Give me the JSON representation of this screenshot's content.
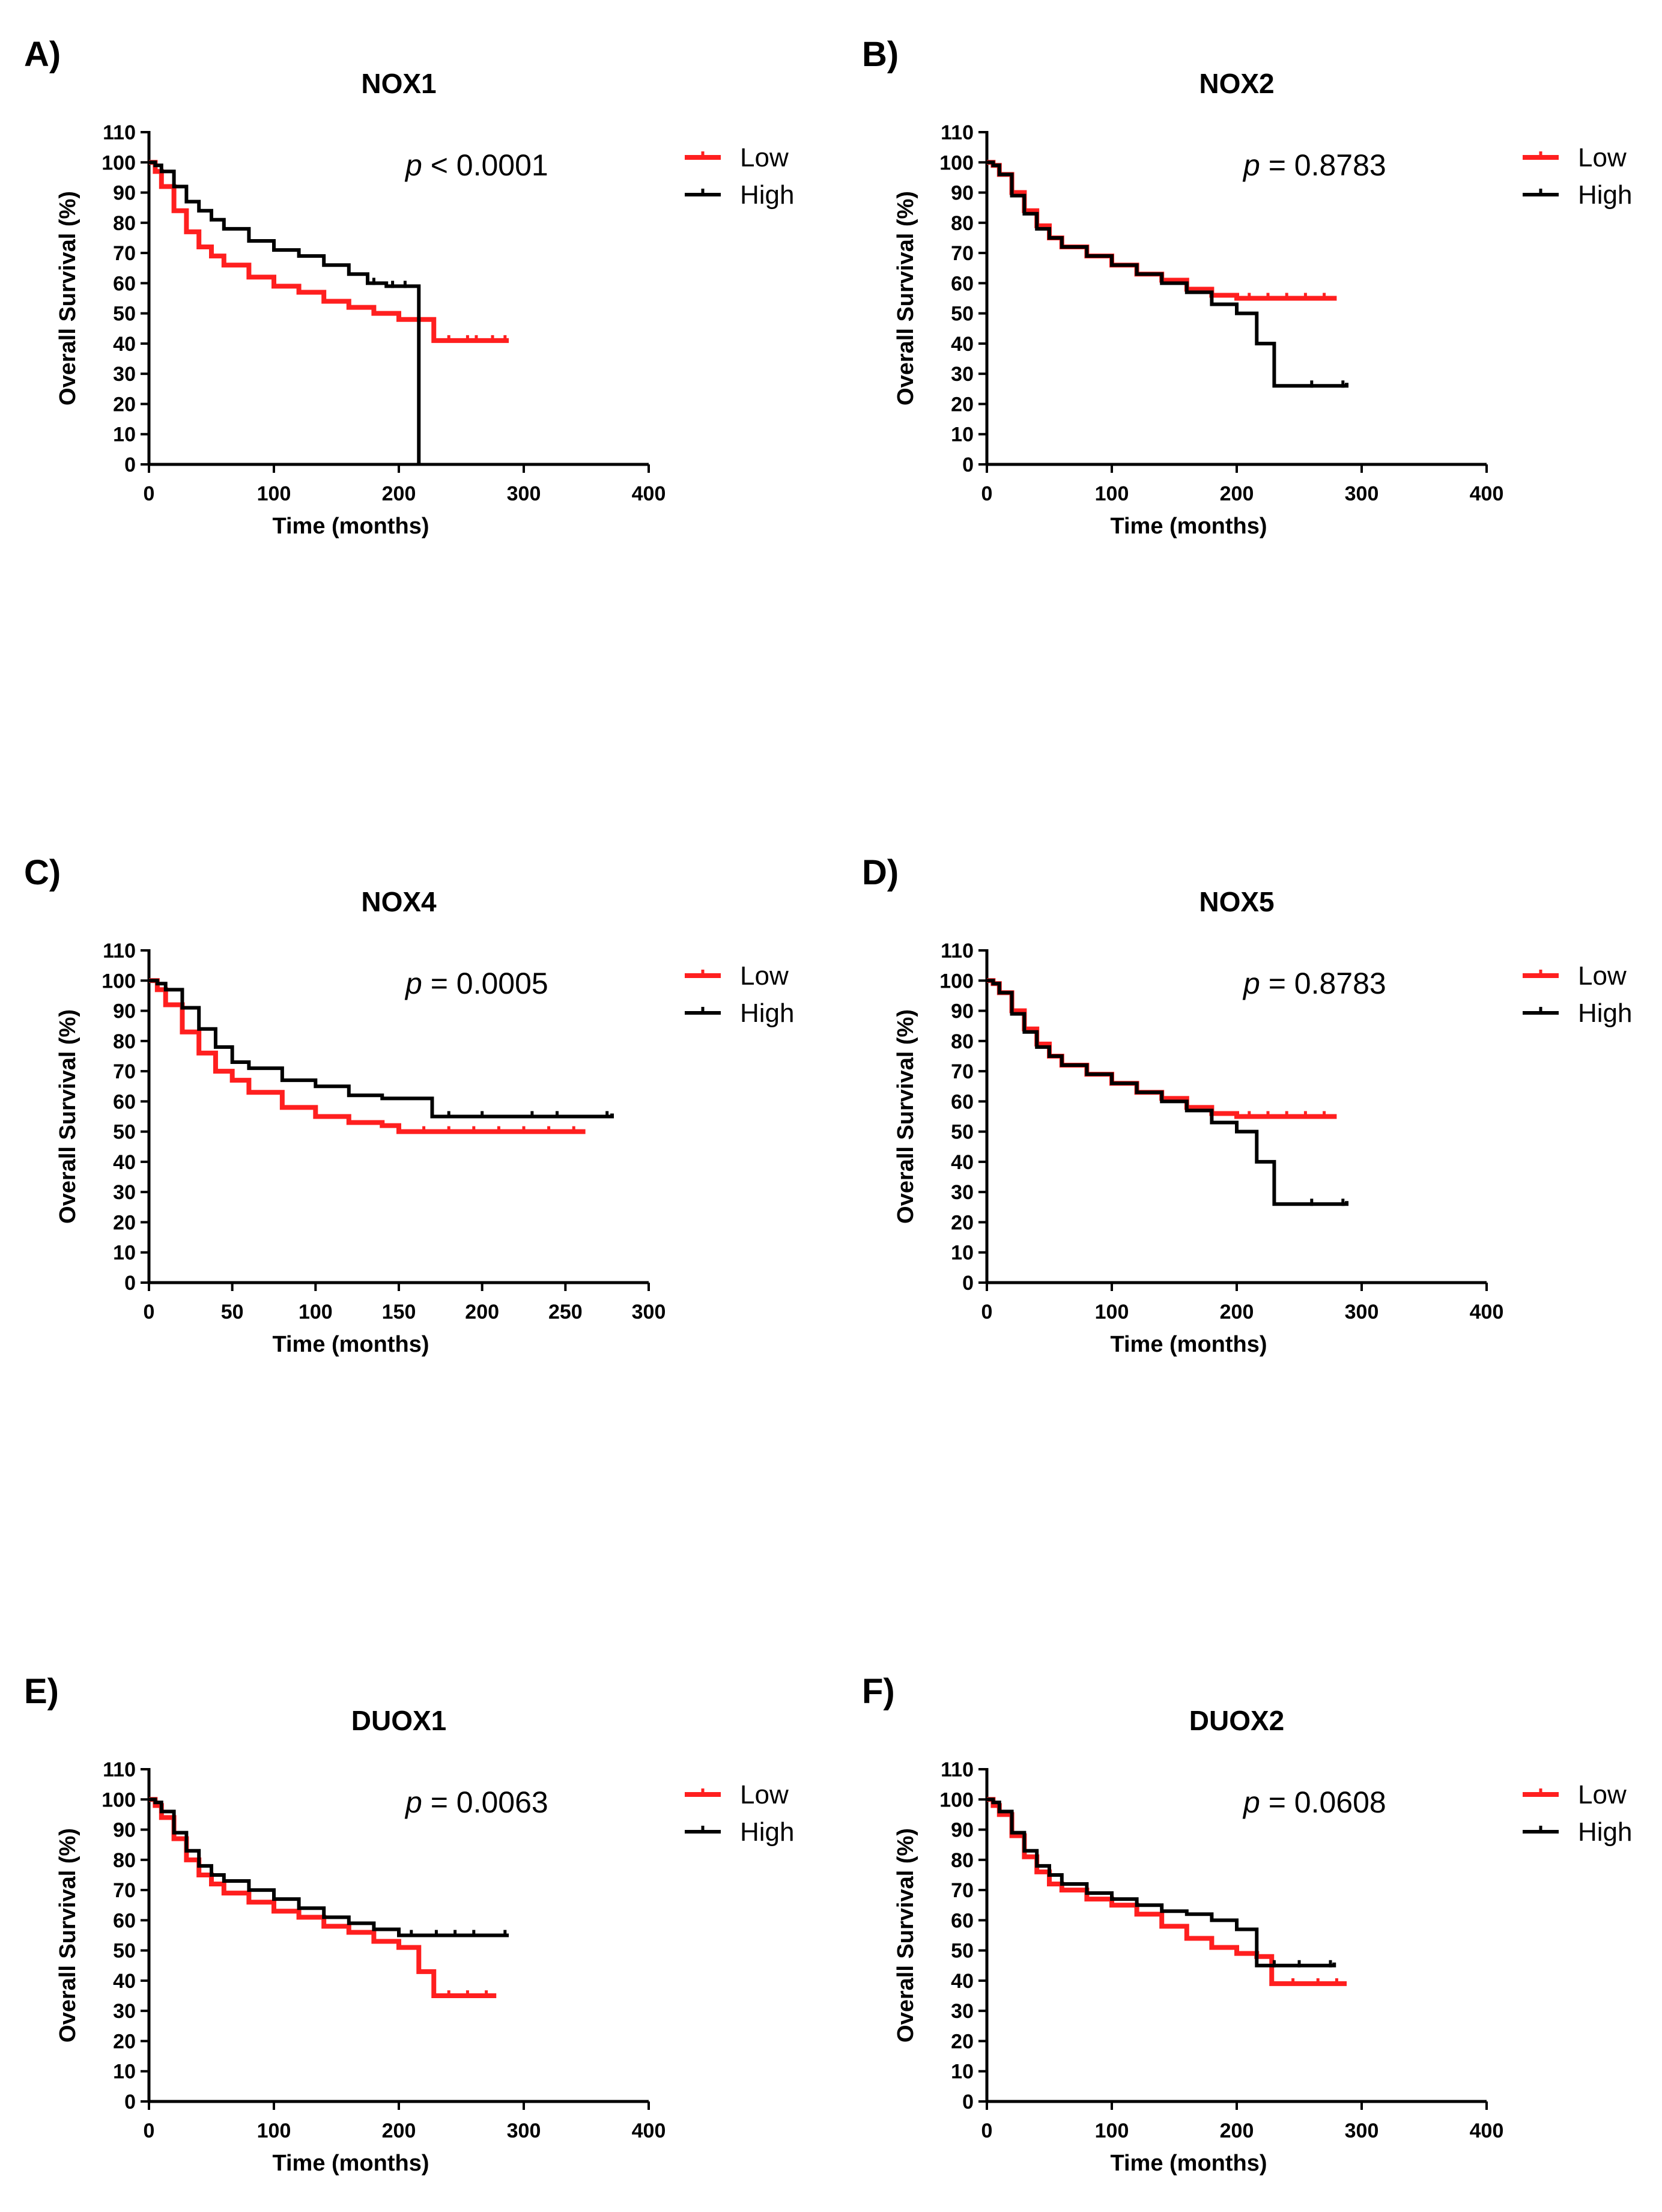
{
  "colors": {
    "low": "#ff1f1f",
    "high": "#000000"
  },
  "legend": {
    "low": "Low",
    "high": "High"
  },
  "p_prefix": "p",
  "chart_data": [
    {
      "panel_label": "A)",
      "title": "NOX1",
      "type": "line",
      "p_text": " < 0.0001",
      "xlabel": "Time (months)",
      "ylabel": "Overall Survival (%)",
      "xlim": [
        0,
        400
      ],
      "xticks": [
        0,
        100,
        200,
        300,
        400
      ],
      "ylim": [
        0,
        110
      ],
      "yticks": [
        0,
        10,
        20,
        30,
        40,
        50,
        60,
        70,
        80,
        90,
        100,
        110
      ],
      "series": [
        {
          "name": "Low",
          "x": [
            0,
            5,
            10,
            20,
            30,
            40,
            50,
            60,
            80,
            100,
            120,
            140,
            160,
            180,
            200,
            218,
            228,
            288
          ],
          "y": [
            100,
            97,
            92,
            84,
            77,
            72,
            69,
            66,
            62,
            59,
            57,
            54,
            52,
            50,
            48,
            48,
            41,
            41
          ],
          "censor_x": [
            240,
            255,
            262,
            275,
            285
          ]
        },
        {
          "name": "High",
          "x": [
            0,
            5,
            10,
            20,
            30,
            40,
            50,
            60,
            80,
            100,
            120,
            140,
            160,
            175,
            190,
            205,
            216,
            216
          ],
          "y": [
            100,
            99,
            97,
            92,
            87,
            84,
            81,
            78,
            74,
            71,
            69,
            66,
            63,
            60,
            59,
            59,
            59,
            0
          ],
          "censor_x": [
            180,
            195,
            205
          ]
        }
      ]
    },
    {
      "panel_label": "B)",
      "title": "NOX2",
      "type": "line",
      "p_text": " = 0.8783",
      "xlabel": "Time (months)",
      "ylabel": "Overall Survival (%)",
      "xlim": [
        0,
        400
      ],
      "xticks": [
        0,
        100,
        200,
        300,
        400
      ],
      "ylim": [
        0,
        110
      ],
      "yticks": [
        0,
        10,
        20,
        30,
        40,
        50,
        60,
        70,
        80,
        90,
        100,
        110
      ],
      "series": [
        {
          "name": "Low",
          "x": [
            0,
            5,
            10,
            20,
            30,
            40,
            50,
            60,
            80,
            100,
            120,
            140,
            160,
            180,
            200,
            240,
            280
          ],
          "y": [
            100,
            99,
            96,
            90,
            84,
            79,
            75,
            72,
            69,
            66,
            63,
            61,
            58,
            56,
            55,
            55,
            55
          ],
          "censor_x": [
            210,
            225,
            240,
            255,
            270
          ]
        },
        {
          "name": "High",
          "x": [
            0,
            5,
            10,
            20,
            30,
            40,
            50,
            60,
            80,
            100,
            120,
            140,
            160,
            180,
            200,
            216,
            222,
            230,
            288
          ],
          "y": [
            100,
            99,
            96,
            89,
            83,
            78,
            75,
            72,
            69,
            66,
            63,
            60,
            57,
            53,
            50,
            40,
            40,
            26,
            27
          ],
          "censor_x": [
            260,
            285
          ]
        }
      ]
    },
    {
      "panel_label": "C)",
      "title": "NOX4",
      "type": "line",
      "p_text": " = 0.0005",
      "xlabel": "Time (months)",
      "ylabel": "Overall Survival (%)",
      "xlim": [
        0,
        300
      ],
      "xticks": [
        0,
        50,
        100,
        150,
        200,
        250,
        300
      ],
      "ylim": [
        0,
        110
      ],
      "yticks": [
        0,
        10,
        20,
        30,
        40,
        50,
        60,
        70,
        80,
        90,
        100,
        110
      ],
      "series": [
        {
          "name": "Low",
          "x": [
            0,
            5,
            10,
            20,
            30,
            40,
            50,
            60,
            80,
            100,
            120,
            140,
            150,
            175,
            200,
            225,
            262
          ],
          "y": [
            100,
            97,
            92,
            83,
            76,
            70,
            67,
            63,
            58,
            55,
            53,
            52,
            50,
            50,
            50,
            50,
            50
          ],
          "censor_x": [
            165,
            180,
            195,
            210,
            225,
            240,
            255
          ]
        },
        {
          "name": "High",
          "x": [
            0,
            5,
            10,
            20,
            30,
            40,
            50,
            60,
            80,
            100,
            120,
            140,
            160,
            170,
            200,
            240,
            278
          ],
          "y": [
            100,
            99,
            97,
            91,
            84,
            78,
            73,
            71,
            67,
            65,
            62,
            61,
            61,
            55,
            55,
            55,
            56
          ],
          "censor_x": [
            180,
            200,
            230,
            245,
            275
          ]
        }
      ]
    },
    {
      "panel_label": "D)",
      "title": "NOX5",
      "type": "line",
      "p_text": " = 0.8783",
      "xlabel": "Time (months)",
      "ylabel": "Overall Survival (%)",
      "xlim": [
        0,
        400
      ],
      "xticks": [
        0,
        100,
        200,
        300,
        400
      ],
      "ylim": [
        0,
        110
      ],
      "yticks": [
        0,
        10,
        20,
        30,
        40,
        50,
        60,
        70,
        80,
        90,
        100,
        110
      ],
      "series": [
        {
          "name": "Low",
          "x": [
            0,
            5,
            10,
            20,
            30,
            40,
            50,
            60,
            80,
            100,
            120,
            140,
            160,
            180,
            200,
            240,
            280
          ],
          "y": [
            100,
            99,
            96,
            90,
            84,
            79,
            75,
            72,
            69,
            66,
            63,
            61,
            58,
            56,
            55,
            55,
            55
          ],
          "censor_x": [
            210,
            225,
            240,
            255,
            270
          ]
        },
        {
          "name": "High",
          "x": [
            0,
            5,
            10,
            20,
            30,
            40,
            50,
            60,
            80,
            100,
            120,
            140,
            160,
            180,
            200,
            216,
            222,
            230,
            288
          ],
          "y": [
            100,
            99,
            96,
            89,
            83,
            78,
            75,
            72,
            69,
            66,
            63,
            60,
            57,
            53,
            50,
            40,
            40,
            26,
            27
          ],
          "censor_x": [
            260,
            285
          ]
        }
      ]
    },
    {
      "panel_label": "E)",
      "title": "DUOX1",
      "type": "line",
      "p_text": " = 0.0063",
      "xlabel": "Time (months)",
      "ylabel": "Overall Survival (%)",
      "xlim": [
        0,
        400
      ],
      "xticks": [
        0,
        100,
        200,
        300,
        400
      ],
      "ylim": [
        0,
        110
      ],
      "yticks": [
        0,
        10,
        20,
        30,
        40,
        50,
        60,
        70,
        80,
        90,
        100,
        110
      ],
      "series": [
        {
          "name": "Low",
          "x": [
            0,
            5,
            10,
            20,
            30,
            40,
            50,
            60,
            80,
            100,
            120,
            140,
            160,
            180,
            200,
            216,
            222,
            228,
            278
          ],
          "y": [
            100,
            98,
            94,
            87,
            80,
            75,
            72,
            69,
            66,
            63,
            61,
            58,
            56,
            53,
            51,
            43,
            43,
            35,
            35
          ],
          "censor_x": [
            240,
            255,
            270
          ]
        },
        {
          "name": "High",
          "x": [
            0,
            5,
            10,
            20,
            30,
            40,
            50,
            60,
            80,
            100,
            120,
            140,
            160,
            180,
            200,
            240,
            288
          ],
          "y": [
            100,
            99,
            96,
            89,
            83,
            78,
            75,
            73,
            70,
            67,
            64,
            61,
            59,
            57,
            55,
            55,
            55
          ],
          "censor_x": [
            210,
            230,
            245,
            260,
            285
          ]
        }
      ]
    },
    {
      "panel_label": "F)",
      "title": "DUOX2",
      "type": "line",
      "p_text": " = 0.0608",
      "xlabel": "Time (months)",
      "ylabel": "Overall Survival (%)",
      "xlim": [
        0,
        400
      ],
      "xticks": [
        0,
        100,
        200,
        300,
        400
      ],
      "ylim": [
        0,
        110
      ],
      "yticks": [
        0,
        10,
        20,
        30,
        40,
        50,
        60,
        70,
        80,
        90,
        100,
        110
      ],
      "series": [
        {
          "name": "Low",
          "x": [
            0,
            5,
            10,
            20,
            30,
            40,
            50,
            60,
            80,
            100,
            120,
            140,
            160,
            180,
            200,
            216,
            228,
            288
          ],
          "y": [
            100,
            98,
            95,
            88,
            81,
            76,
            72,
            70,
            67,
            65,
            62,
            58,
            54,
            51,
            49,
            48,
            39,
            39
          ],
          "censor_x": [
            245,
            265,
            280
          ]
        },
        {
          "name": "High",
          "x": [
            0,
            5,
            10,
            20,
            30,
            40,
            50,
            60,
            80,
            100,
            120,
            140,
            160,
            180,
            200,
            216,
            222,
            278
          ],
          "y": [
            100,
            99,
            96,
            89,
            83,
            78,
            75,
            72,
            69,
            67,
            65,
            63,
            62,
            60,
            57,
            45,
            45,
            46
          ],
          "censor_x": [
            230,
            250,
            275
          ]
        }
      ]
    }
  ]
}
